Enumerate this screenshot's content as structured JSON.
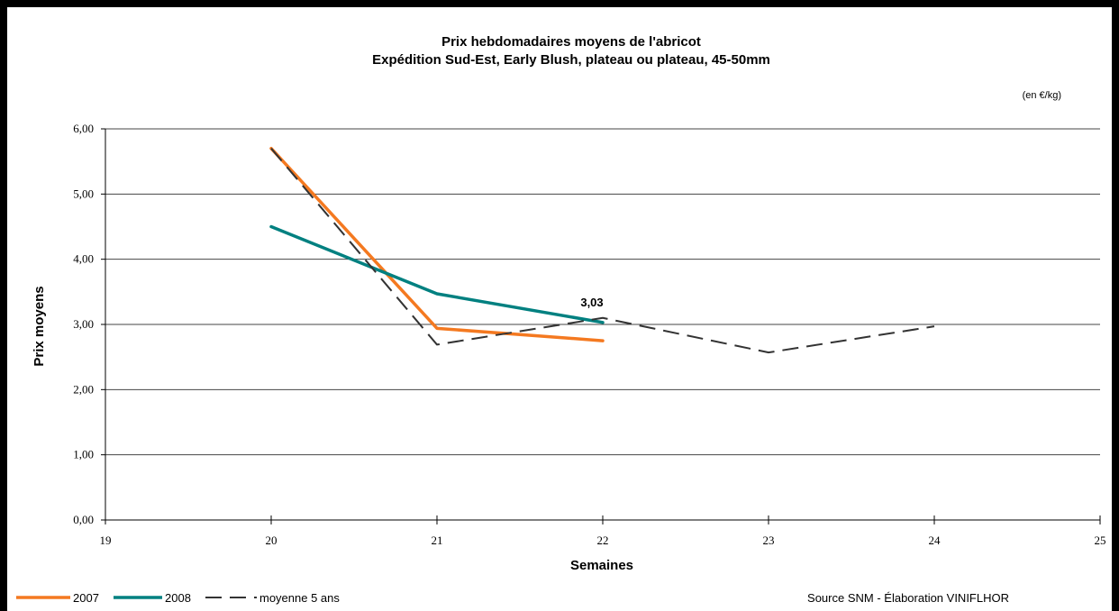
{
  "chart_data": {
    "type": "line",
    "title": "Prix hebdomadaires moyens de l'abricot",
    "subtitle": "Expédition Sud-Est, Early Blush, plateau ou plateau, 45-50mm",
    "unit_note": "(en €/kg)",
    "xlabel": "Semaines",
    "ylabel": "Prix moyens",
    "xlim": [
      19,
      25
    ],
    "ylim": [
      0,
      6
    ],
    "x_ticks": [
      "19",
      "20",
      "21",
      "22",
      "23",
      "24",
      "25"
    ],
    "y_ticks": [
      "0,00",
      "1,00",
      "2,00",
      "3,00",
      "4,00",
      "5,00",
      "6,00"
    ],
    "grid": "horizontal",
    "legend_position": "bottom-left",
    "series": [
      {
        "name": "2007",
        "color": "#f47920",
        "style": "solid",
        "x": [
          20,
          21,
          22
        ],
        "y": [
          5.7,
          2.94,
          2.75
        ]
      },
      {
        "name": "2008",
        "color": "#008080",
        "style": "solid",
        "x": [
          20,
          21,
          22
        ],
        "y": [
          4.5,
          3.47,
          3.03
        ]
      },
      {
        "name": "moyenne 5 ans",
        "color": "#333333",
        "style": "dashed",
        "x": [
          20,
          21,
          22,
          23,
          24
        ],
        "y": [
          5.7,
          2.69,
          3.1,
          2.57,
          2.97
        ]
      }
    ],
    "annotations": [
      {
        "text": "3,03",
        "x": 22,
        "y": 3.03
      }
    ],
    "source": "Source SNM - Élaboration VINIFLHOR"
  }
}
